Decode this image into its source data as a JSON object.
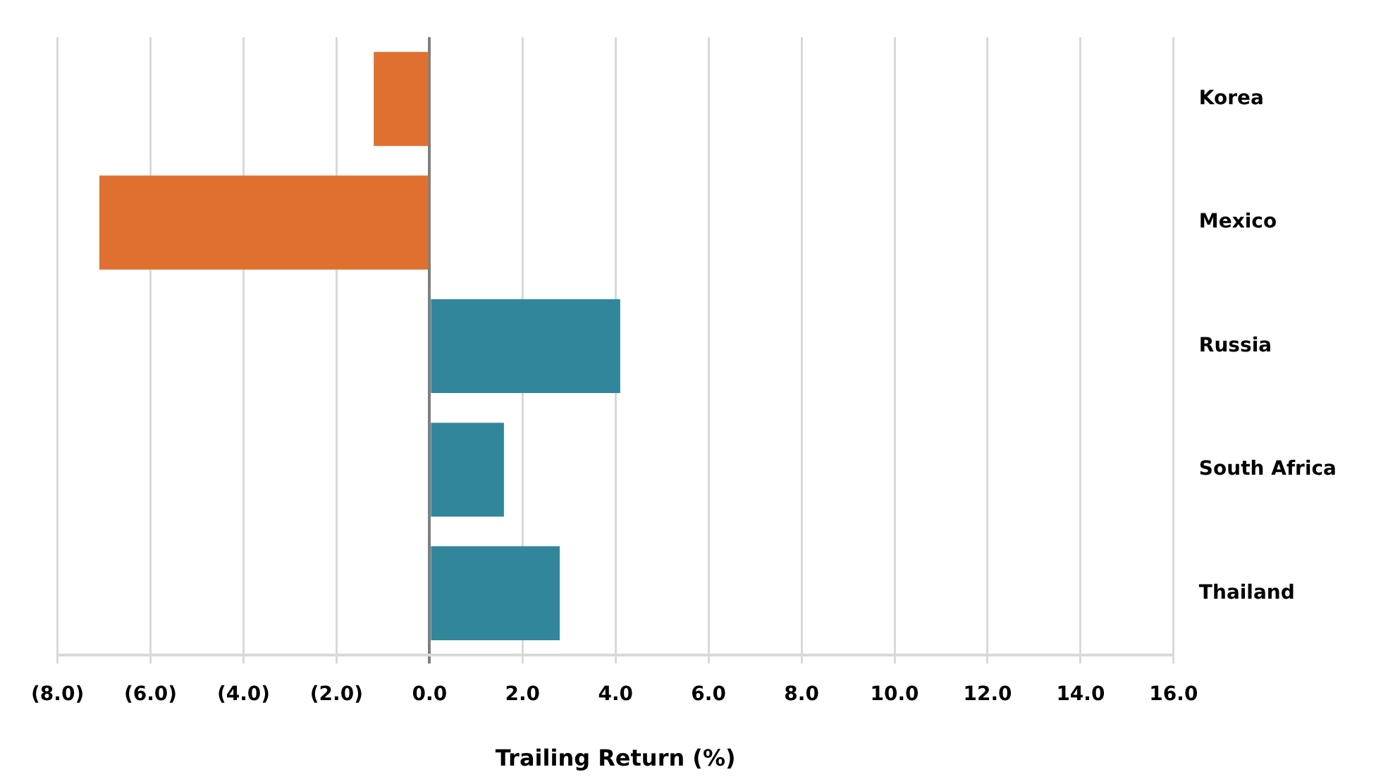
{
  "chart_data": {
    "type": "bar",
    "orientation": "horizontal",
    "xlabel": "Trailing Return (%)",
    "categories": [
      "Korea",
      "Mexico",
      "Russia",
      "South Africa",
      "Thailand"
    ],
    "values": [
      -1.2,
      -7.1,
      4.1,
      1.6,
      2.8
    ],
    "colors": [
      "#e07030",
      "#e07030",
      "#31869b",
      "#31869b",
      "#31869b"
    ],
    "xlim": [
      -8,
      16
    ],
    "xticks": [
      {
        "value": -8,
        "label": "(8.0)"
      },
      {
        "value": -6,
        "label": "(6.0)"
      },
      {
        "value": -4,
        "label": "(4.0)"
      },
      {
        "value": -2,
        "label": "(2.0)"
      },
      {
        "value": 0,
        "label": "0.0"
      },
      {
        "value": 2,
        "label": "2.0"
      },
      {
        "value": 4,
        "label": "4.0"
      },
      {
        "value": 6,
        "label": "6.0"
      },
      {
        "value": 8,
        "label": "8.0"
      },
      {
        "value": 10,
        "label": "10.0"
      },
      {
        "value": 12,
        "label": "12.0"
      },
      {
        "value": 14,
        "label": "14.0"
      },
      {
        "value": 16,
        "label": "16.0"
      }
    ],
    "grid": "x",
    "legend": false
  }
}
